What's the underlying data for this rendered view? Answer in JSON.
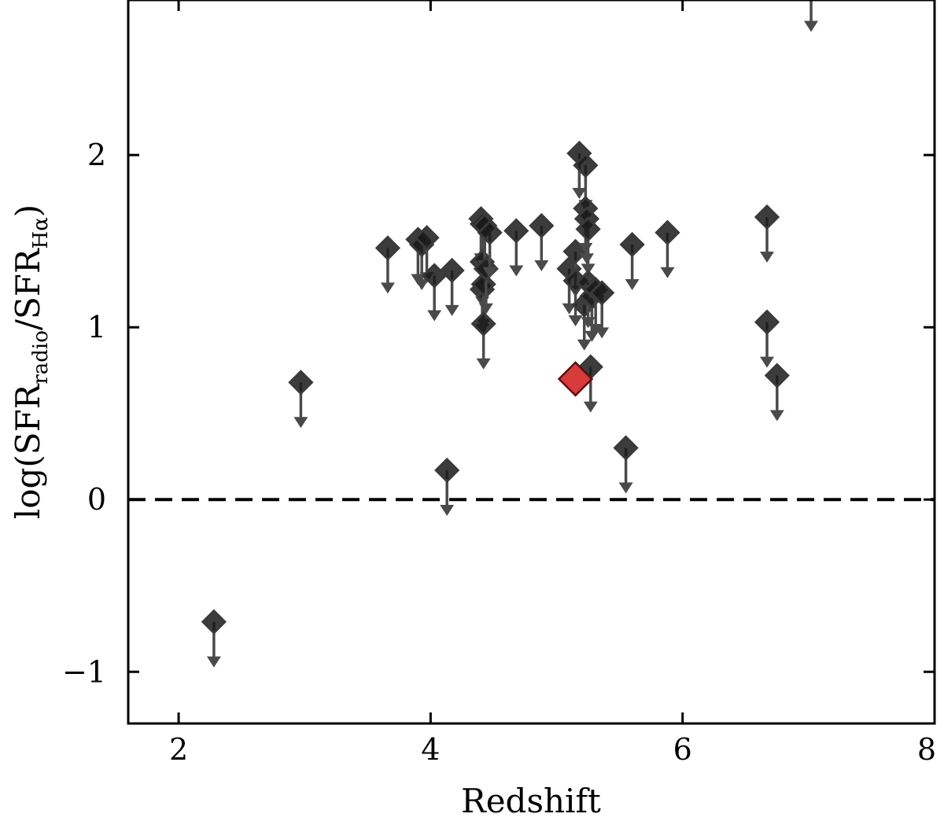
{
  "chart_data": {
    "type": "scatter",
    "title": "",
    "xlabel": "Redshift",
    "ylabel": {
      "prefix": "log(SFR",
      "sub1": "radio",
      "middle": "/SFR",
      "sub2": "Hα",
      "suffix": ")"
    },
    "xlim": [
      1.6,
      8.0
    ],
    "ylim": [
      -1.3,
      2.9
    ],
    "xticks": [
      2,
      4,
      6,
      8
    ],
    "yticks": [
      -1,
      0,
      1,
      2
    ],
    "xtick_labels": [
      "2",
      "4",
      "6",
      "8"
    ],
    "ytick_labels": [
      "−1",
      "0",
      "1",
      "2"
    ],
    "reference_line": {
      "y": 0,
      "style": "dashed"
    },
    "colors": {
      "points": "#1a1a1a",
      "arrows": "#4a4a4a",
      "highlight": "#d42a2a"
    },
    "upper_limits": [
      {
        "x": 2.28,
        "y": -0.71
      },
      {
        "x": 2.97,
        "y": 0.68
      },
      {
        "x": 3.66,
        "y": 1.46
      },
      {
        "x": 3.9,
        "y": 1.51
      },
      {
        "x": 3.93,
        "y": 1.48
      },
      {
        "x": 3.97,
        "y": 1.52
      },
      {
        "x": 4.03,
        "y": 1.3
      },
      {
        "x": 4.13,
        "y": 0.17
      },
      {
        "x": 4.17,
        "y": 1.33
      },
      {
        "x": 4.4,
        "y": 1.63
      },
      {
        "x": 4.41,
        "y": 1.6
      },
      {
        "x": 4.41,
        "y": 1.38
      },
      {
        "x": 4.41,
        "y": 1.22
      },
      {
        "x": 4.42,
        "y": 1.25
      },
      {
        "x": 4.42,
        "y": 1.02
      },
      {
        "x": 4.43,
        "y": 1.59
      },
      {
        "x": 4.44,
        "y": 1.34
      },
      {
        "x": 4.47,
        "y": 1.55
      },
      {
        "x": 4.68,
        "y": 1.56
      },
      {
        "x": 4.88,
        "y": 1.59
      },
      {
        "x": 5.1,
        "y": 1.34
      },
      {
        "x": 5.15,
        "y": 1.44
      },
      {
        "x": 5.15,
        "y": 1.27
      },
      {
        "x": 5.18,
        "y": 2.01
      },
      {
        "x": 5.22,
        "y": 1.13
      },
      {
        "x": 5.23,
        "y": 1.94
      },
      {
        "x": 5.23,
        "y": 1.69
      },
      {
        "x": 5.24,
        "y": 1.63
      },
      {
        "x": 5.25,
        "y": 1.57
      },
      {
        "x": 5.25,
        "y": 1.26
      },
      {
        "x": 5.27,
        "y": 0.77
      },
      {
        "x": 5.28,
        "y": 1.18
      },
      {
        "x": 5.31,
        "y": 1.22
      },
      {
        "x": 5.36,
        "y": 1.2
      },
      {
        "x": 5.55,
        "y": 0.3
      },
      {
        "x": 5.6,
        "y": 1.48
      },
      {
        "x": 5.88,
        "y": 1.55
      },
      {
        "x": 6.67,
        "y": 1.64
      },
      {
        "x": 6.67,
        "y": 1.03
      },
      {
        "x": 6.75,
        "y": 0.72
      },
      {
        "x": 7.02,
        "y": 2.98
      }
    ],
    "highlight": [
      {
        "x": 5.15,
        "y": 0.7
      }
    ]
  }
}
